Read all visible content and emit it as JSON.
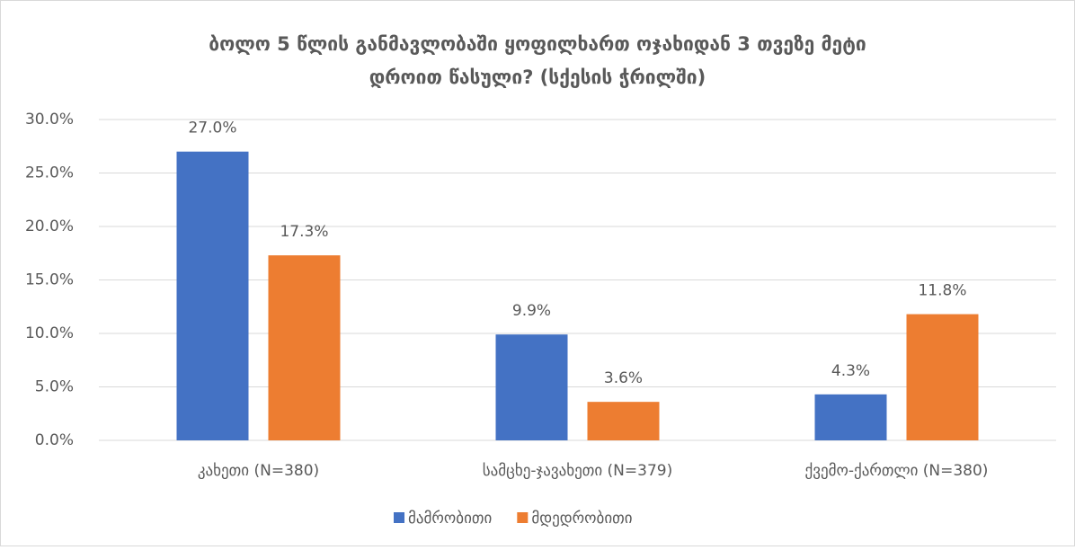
{
  "chart_data": {
    "type": "bar",
    "title": [
      "ბოლო 5 წლის განმავლობაში ყოფილხართ ოჯახიდან 3 თვეზე მეტი",
      "დროით წასული? (სქესის ჭრილში)"
    ],
    "categories": [
      "კახეთი (N=380)",
      "სამცხე-ჯავახეთი (N=379)",
      "ქვემო-ქართლი (N=380)"
    ],
    "series": [
      {
        "name": "მამრობითი",
        "color": "#4472c4",
        "values": [
          27.0,
          9.9,
          4.3
        ],
        "value_labels": [
          "27.0%",
          "9.9%",
          "4.3%"
        ]
      },
      {
        "name": "მდედრობითი",
        "color": "#ed7d31",
        "values": [
          17.3,
          3.6,
          11.8
        ],
        "value_labels": [
          "17.3%",
          "3.6%",
          "11.8%"
        ]
      }
    ],
    "ylim": [
      0,
      30
    ],
    "yticks": [
      {
        "value": 0,
        "label": "0.0%"
      },
      {
        "value": 5,
        "label": "5.0%"
      },
      {
        "value": 10,
        "label": "10.0%"
      },
      {
        "value": 15,
        "label": "15.0%"
      },
      {
        "value": 20,
        "label": "20.0%"
      },
      {
        "value": 25,
        "label": "25.0%"
      },
      {
        "value": 30,
        "label": "30.0%"
      }
    ],
    "grid": true,
    "legend": "bottom"
  }
}
